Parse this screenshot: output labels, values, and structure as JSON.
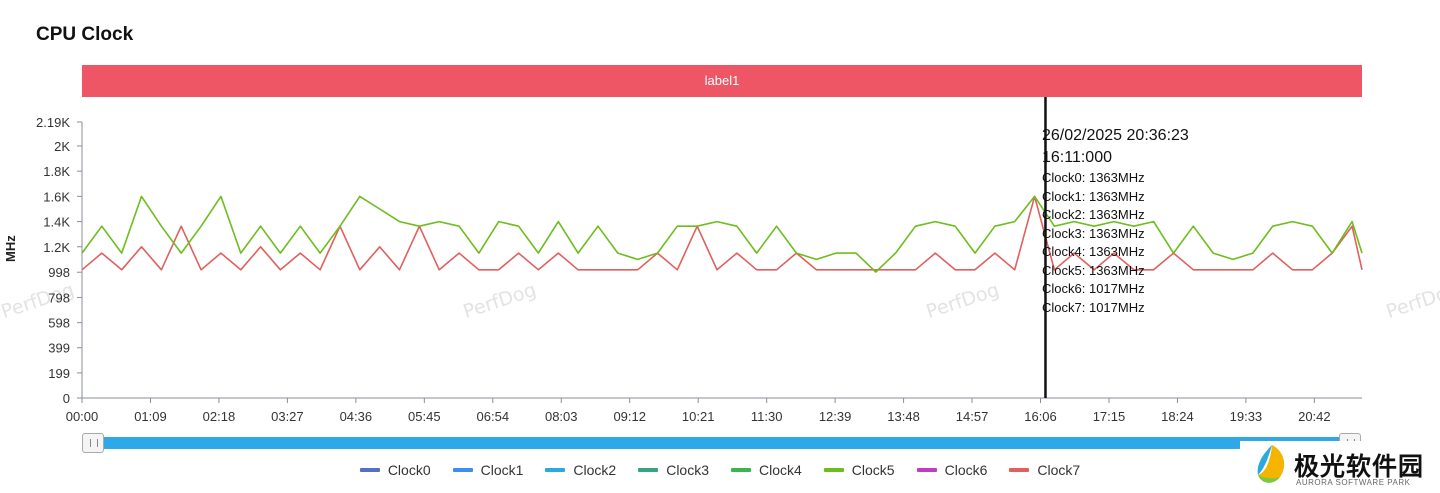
{
  "header": {
    "title": "CPU Clock"
  },
  "label_band": {
    "text": "label1",
    "color": "#ee5666"
  },
  "watermark_text": "PerfDog",
  "tooltip": {
    "date": "26/02/2025 20:36:23",
    "time": "16:11:000",
    "lines": [
      "Clock0: 1363MHz",
      "Clock1: 1363MHz",
      "Clock2: 1363MHz",
      "Clock3: 1363MHz",
      "Clock4: 1363MHz",
      "Clock5: 1363MHz",
      "Clock6: 1017MHz",
      "Clock7: 1017MHz"
    ]
  },
  "logo": {
    "text_cn": "极光软件园",
    "text_en": "AURORA SOFTWARE PARK"
  },
  "chart_data": {
    "type": "line",
    "title": "CPU Clock",
    "ylabel": "MHz",
    "xlabel": "",
    "ylim": [
      0,
      2190
    ],
    "yticks": [
      {
        "value": 0,
        "label": "0"
      },
      {
        "value": 199,
        "label": "199"
      },
      {
        "value": 399,
        "label": "399"
      },
      {
        "value": 598,
        "label": "598"
      },
      {
        "value": 798,
        "label": "798"
      },
      {
        "value": 998,
        "label": "998"
      },
      {
        "value": 1200,
        "label": "1.2K"
      },
      {
        "value": 1400,
        "label": "1.4K"
      },
      {
        "value": 1600,
        "label": "1.6K"
      },
      {
        "value": 1800,
        "label": "1.8K"
      },
      {
        "value": 2000,
        "label": "2K"
      },
      {
        "value": 2190,
        "label": "2.19K"
      }
    ],
    "xlim_minutes": [
      0,
      1290
    ],
    "xticks": [
      "00:00",
      "01:09",
      "02:18",
      "03:27",
      "04:36",
      "05:45",
      "06:54",
      "08:03",
      "09:12",
      "10:21",
      "11:30",
      "12:39",
      "13:48",
      "14:57",
      "16:06",
      "17:15",
      "18:24",
      "19:33",
      "20:42"
    ],
    "cursor_time": "16:11",
    "grid": false,
    "legend_position": "bottom",
    "series": [
      {
        "name": "Clock0",
        "color": "#5470c6"
      },
      {
        "name": "Clock1",
        "color": "#3c8ef0"
      },
      {
        "name": "Clock2",
        "color": "#29a9e0"
      },
      {
        "name": "Clock3",
        "color": "#35a57e"
      },
      {
        "name": "Clock4",
        "color": "#3cb64a"
      },
      {
        "name": "Clock5",
        "color": "#6cbd1d",
        "x": [
          "00:00",
          "00:20",
          "00:40",
          "01:00",
          "01:20",
          "01:40",
          "02:00",
          "02:20",
          "02:40",
          "03:00",
          "03:20",
          "03:40",
          "04:00",
          "04:20",
          "04:40",
          "05:00",
          "05:20",
          "05:40",
          "06:00",
          "06:20",
          "06:40",
          "07:00",
          "07:20",
          "07:40",
          "08:00",
          "08:20",
          "08:40",
          "09:00",
          "09:20",
          "09:40",
          "10:00",
          "10:20",
          "10:40",
          "11:00",
          "11:20",
          "11:40",
          "12:00",
          "12:20",
          "12:40",
          "13:00",
          "13:20",
          "13:40",
          "14:00",
          "14:20",
          "14:40",
          "15:00",
          "15:20",
          "15:40",
          "16:00",
          "16:20",
          "16:40",
          "17:00",
          "17:20",
          "17:40",
          "18:00",
          "18:20",
          "18:40",
          "19:00",
          "19:20",
          "19:40",
          "20:00",
          "20:20",
          "20:40",
          "21:00",
          "21:20",
          "21:30"
        ],
        "values": [
          1150,
          1363,
          1150,
          1600,
          1363,
          1150,
          1363,
          1600,
          1150,
          1363,
          1150,
          1363,
          1150,
          1363,
          1600,
          1500,
          1400,
          1363,
          1400,
          1363,
          1150,
          1400,
          1363,
          1150,
          1400,
          1150,
          1363,
          1150,
          1100,
          1150,
          1363,
          1363,
          1400,
          1363,
          1150,
          1363,
          1150,
          1100,
          1150,
          1150,
          1000,
          1150,
          1363,
          1400,
          1363,
          1150,
          1363,
          1400,
          1600,
          1363,
          1400,
          1363,
          1400,
          1363,
          1400,
          1150,
          1363,
          1150,
          1100,
          1150,
          1363,
          1400,
          1363,
          1150,
          1400,
          1150
        ]
      },
      {
        "name": "Clock6",
        "color": "#c23bc1"
      },
      {
        "name": "Clock7",
        "color": "#e0605d",
        "x": [
          "00:00",
          "00:20",
          "00:40",
          "01:00",
          "01:20",
          "01:40",
          "02:00",
          "02:20",
          "02:40",
          "03:00",
          "03:20",
          "03:40",
          "04:00",
          "04:20",
          "04:40",
          "05:00",
          "05:20",
          "05:40",
          "06:00",
          "06:20",
          "06:40",
          "07:00",
          "07:20",
          "07:40",
          "08:00",
          "08:20",
          "08:40",
          "09:00",
          "09:20",
          "09:40",
          "10:00",
          "10:20",
          "10:40",
          "11:00",
          "11:20",
          "11:40",
          "12:00",
          "12:20",
          "12:40",
          "13:00",
          "13:20",
          "13:40",
          "14:00",
          "14:20",
          "14:40",
          "15:00",
          "15:20",
          "15:40",
          "16:00",
          "16:20",
          "16:40",
          "17:00",
          "17:20",
          "17:40",
          "18:00",
          "18:20",
          "18:40",
          "19:00",
          "19:20",
          "19:40",
          "20:00",
          "20:20",
          "20:40",
          "21:00",
          "21:20",
          "21:30"
        ],
        "values": [
          1017,
          1150,
          1017,
          1200,
          1017,
          1363,
          1017,
          1150,
          1017,
          1200,
          1017,
          1150,
          1017,
          1363,
          1017,
          1200,
          1017,
          1363,
          1017,
          1150,
          1017,
          1017,
          1150,
          1017,
          1150,
          1017,
          1017,
          1017,
          1017,
          1150,
          1017,
          1363,
          1017,
          1150,
          1017,
          1017,
          1150,
          1017,
          1017,
          1017,
          1017,
          1017,
          1017,
          1150,
          1017,
          1017,
          1150,
          1017,
          1600,
          1017,
          1150,
          1017,
          1150,
          1017,
          1017,
          1150,
          1017,
          1017,
          1017,
          1017,
          1150,
          1017,
          1017,
          1150,
          1363,
          1017
        ]
      }
    ]
  }
}
